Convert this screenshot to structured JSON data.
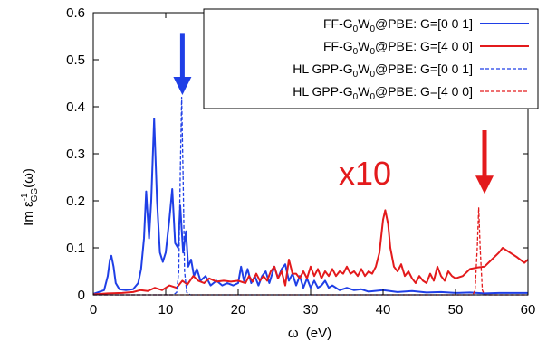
{
  "chart_data": {
    "type": "line",
    "xlabel_main": "ω",
    "xlabel_unit": "(eV)",
    "ylabel": {
      "base": "Im ε",
      "sup": "-1",
      "sub": "GG",
      "tail": "(ω)"
    },
    "xlim": [
      0,
      60
    ],
    "ylim": [
      0,
      0.6
    ],
    "xticks": [
      0,
      10,
      20,
      30,
      40,
      50,
      60
    ],
    "yticks": [
      0,
      0.1,
      0.2,
      0.3,
      0.4,
      0.5,
      0.6
    ],
    "xtick_labels": [
      "0",
      "10",
      "20",
      "30",
      "40",
      "50",
      "60"
    ],
    "ytick_labels": [
      "0",
      "0.1",
      "0.2",
      "0.3",
      "0.4",
      "0.5",
      "0.6"
    ],
    "grid": false,
    "legend_position": "top-right",
    "annotation": {
      "text": "x10",
      "x": 37.5,
      "y": 0.235
    },
    "arrows": [
      {
        "x": 12.3,
        "y_from": 0.555,
        "y_to": 0.425,
        "color": "#1f3fe6"
      },
      {
        "x": 54.0,
        "y_from": 0.35,
        "y_to": 0.215,
        "color": "#e31a1c"
      }
    ],
    "series": [
      {
        "name": "FF-G0W0@PBE: G=[0 0 1]",
        "legend": {
          "prefix": "FF-G",
          "sub1": "0",
          "mid": "W",
          "sub2": "0",
          "suffix": "@PBE: G=[0 0 1]"
        },
        "color": "#1f3fe6",
        "dash": "solid",
        "points": [
          [
            0,
            0.002
          ],
          [
            1.5,
            0.01
          ],
          [
            2.0,
            0.04
          ],
          [
            2.3,
            0.075
          ],
          [
            2.5,
            0.083
          ],
          [
            2.8,
            0.06
          ],
          [
            3.1,
            0.025
          ],
          [
            3.6,
            0.012
          ],
          [
            4.5,
            0.01
          ],
          [
            5.5,
            0.012
          ],
          [
            6.2,
            0.025
          ],
          [
            6.6,
            0.055
          ],
          [
            7.0,
            0.12
          ],
          [
            7.3,
            0.22
          ],
          [
            7.7,
            0.12
          ],
          [
            8.0,
            0.2
          ],
          [
            8.4,
            0.375
          ],
          [
            8.8,
            0.2
          ],
          [
            9.2,
            0.09
          ],
          [
            9.6,
            0.07
          ],
          [
            10.0,
            0.09
          ],
          [
            10.5,
            0.16
          ],
          [
            10.9,
            0.225
          ],
          [
            11.3,
            0.11
          ],
          [
            11.7,
            0.1
          ],
          [
            12.0,
            0.19
          ],
          [
            12.4,
            0.09
          ],
          [
            12.8,
            0.135
          ],
          [
            13.1,
            0.06
          ],
          [
            13.5,
            0.075
          ],
          [
            13.9,
            0.04
          ],
          [
            14.3,
            0.055
          ],
          [
            14.8,
            0.03
          ],
          [
            15.5,
            0.04
          ],
          [
            16.2,
            0.02
          ],
          [
            17.0,
            0.03
          ],
          [
            17.8,
            0.02
          ],
          [
            18.5,
            0.025
          ],
          [
            19.3,
            0.02
          ],
          [
            20.0,
            0.025
          ],
          [
            20.4,
            0.06
          ],
          [
            20.8,
            0.03
          ],
          [
            21.3,
            0.055
          ],
          [
            21.8,
            0.025
          ],
          [
            22.3,
            0.04
          ],
          [
            22.8,
            0.02
          ],
          [
            23.3,
            0.04
          ],
          [
            23.8,
            0.05
          ],
          [
            24.3,
            0.025
          ],
          [
            25.0,
            0.06
          ],
          [
            25.5,
            0.035
          ],
          [
            26.0,
            0.055
          ],
          [
            26.5,
            0.065
          ],
          [
            27.0,
            0.03
          ],
          [
            27.5,
            0.045
          ],
          [
            28.0,
            0.02
          ],
          [
            28.5,
            0.04
          ],
          [
            29.0,
            0.015
          ],
          [
            29.5,
            0.035
          ],
          [
            30.0,
            0.015
          ],
          [
            30.5,
            0.03
          ],
          [
            31.0,
            0.015
          ],
          [
            31.5,
            0.02
          ],
          [
            32.0,
            0.03
          ],
          [
            32.5,
            0.015
          ],
          [
            33.0,
            0.02
          ],
          [
            34.0,
            0.01
          ],
          [
            35.0,
            0.015
          ],
          [
            36.0,
            0.01
          ],
          [
            37.0,
            0.012
          ],
          [
            38.0,
            0.007
          ],
          [
            40.0,
            0.01
          ],
          [
            42.0,
            0.006
          ],
          [
            44.0,
            0.008
          ],
          [
            46.0,
            0.005
          ],
          [
            48.0,
            0.006
          ],
          [
            50.0,
            0.004
          ],
          [
            52.0,
            0.005
          ],
          [
            54.0,
            0.003
          ],
          [
            56.0,
            0.004
          ],
          [
            58.0,
            0.004
          ],
          [
            60.0,
            0.004
          ]
        ]
      },
      {
        "name": "FF-G0W0@PBE: G=[4 0 0]",
        "legend": {
          "prefix": "FF-G",
          "sub1": "0",
          "mid": "W",
          "sub2": "0",
          "suffix": "@PBE: G=[4 0 0]"
        },
        "color": "#e31a1c",
        "dash": "solid",
        "points": [
          [
            0,
            0.001
          ],
          [
            2,
            0.003
          ],
          [
            4,
            0.004
          ],
          [
            5.5,
            0.006
          ],
          [
            6.5,
            0.01
          ],
          [
            7.5,
            0.008
          ],
          [
            8.5,
            0.015
          ],
          [
            9.5,
            0.01
          ],
          [
            10.5,
            0.02
          ],
          [
            11.5,
            0.015
          ],
          [
            12.3,
            0.03
          ],
          [
            13.0,
            0.022
          ],
          [
            13.8,
            0.04
          ],
          [
            14.5,
            0.03
          ],
          [
            15.3,
            0.025
          ],
          [
            16.0,
            0.035
          ],
          [
            17.0,
            0.028
          ],
          [
            18.0,
            0.03
          ],
          [
            19.0,
            0.028
          ],
          [
            20.0,
            0.03
          ],
          [
            21.0,
            0.025
          ],
          [
            21.5,
            0.04
          ],
          [
            22.0,
            0.028
          ],
          [
            22.5,
            0.045
          ],
          [
            23.0,
            0.03
          ],
          [
            23.5,
            0.04
          ],
          [
            24.0,
            0.03
          ],
          [
            24.5,
            0.05
          ],
          [
            25.0,
            0.06
          ],
          [
            25.5,
            0.035
          ],
          [
            26.0,
            0.05
          ],
          [
            26.5,
            0.02
          ],
          [
            27.0,
            0.075
          ],
          [
            27.5,
            0.045
          ],
          [
            28.0,
            0.045
          ],
          [
            28.5,
            0.035
          ],
          [
            29.0,
            0.05
          ],
          [
            29.5,
            0.035
          ],
          [
            30.0,
            0.06
          ],
          [
            30.5,
            0.04
          ],
          [
            31.0,
            0.055
          ],
          [
            31.5,
            0.035
          ],
          [
            32.0,
            0.05
          ],
          [
            32.5,
            0.04
          ],
          [
            33.0,
            0.055
          ],
          [
            33.5,
            0.04
          ],
          [
            34.0,
            0.05
          ],
          [
            34.5,
            0.045
          ],
          [
            35.0,
            0.06
          ],
          [
            35.5,
            0.045
          ],
          [
            36.0,
            0.05
          ],
          [
            36.5,
            0.04
          ],
          [
            37.0,
            0.055
          ],
          [
            37.5,
            0.04
          ],
          [
            38.0,
            0.05
          ],
          [
            38.5,
            0.045
          ],
          [
            39.0,
            0.06
          ],
          [
            39.5,
            0.09
          ],
          [
            40.0,
            0.16
          ],
          [
            40.3,
            0.18
          ],
          [
            40.7,
            0.15
          ],
          [
            41.0,
            0.1
          ],
          [
            41.5,
            0.06
          ],
          [
            42.0,
            0.05
          ],
          [
            42.5,
            0.065
          ],
          [
            43.0,
            0.04
          ],
          [
            43.5,
            0.05
          ],
          [
            44.0,
            0.035
          ],
          [
            44.5,
            0.025
          ],
          [
            45.0,
            0.04
          ],
          [
            45.5,
            0.03
          ],
          [
            46.0,
            0.025
          ],
          [
            46.5,
            0.045
          ],
          [
            47.0,
            0.03
          ],
          [
            47.5,
            0.06
          ],
          [
            48.0,
            0.04
          ],
          [
            48.5,
            0.03
          ],
          [
            49.0,
            0.05
          ],
          [
            49.5,
            0.04
          ],
          [
            50.0,
            0.035
          ],
          [
            51.0,
            0.04
          ],
          [
            52.0,
            0.055
          ],
          [
            53.0,
            0.058
          ],
          [
            54.0,
            0.06
          ],
          [
            55.0,
            0.075
          ],
          [
            56.0,
            0.09
          ],
          [
            56.5,
            0.1
          ],
          [
            57.5,
            0.09
          ],
          [
            58.5,
            0.08
          ],
          [
            59.5,
            0.068
          ],
          [
            60.0,
            0.075
          ]
        ]
      },
      {
        "name": "HL GPP-G0W0@PBE: G=[0 0 1]",
        "legend": {
          "prefix": "HL GPP-G",
          "sub1": "0",
          "mid": "W",
          "sub2": "0",
          "suffix": "@PBE: G=[0 0 1]"
        },
        "color": "#1f3fe6",
        "dash": "dashed",
        "points": [
          [
            0,
            0
          ],
          [
            11.0,
            0
          ],
          [
            11.5,
            0.005
          ],
          [
            11.8,
            0.05
          ],
          [
            12.0,
            0.25
          ],
          [
            12.2,
            0.42
          ],
          [
            12.4,
            0.25
          ],
          [
            12.6,
            0.05
          ],
          [
            12.9,
            0.005
          ],
          [
            13.4,
            0
          ],
          [
            60,
            0
          ]
        ]
      },
      {
        "name": "HL GPP-G0W0@PBE: G=[4 0 0]",
        "legend": {
          "prefix": "HL GPP-G",
          "sub1": "0",
          "mid": "W",
          "sub2": "0",
          "suffix": "@PBE: G=[4 0 0]"
        },
        "color": "#e31a1c",
        "dash": "dashed",
        "points": [
          [
            0,
            0
          ],
          [
            52.4,
            0
          ],
          [
            52.7,
            0.01
          ],
          [
            53.0,
            0.1
          ],
          [
            53.2,
            0.185
          ],
          [
            53.4,
            0.1
          ],
          [
            53.7,
            0.01
          ],
          [
            54.0,
            0
          ],
          [
            60,
            0
          ]
        ]
      }
    ]
  }
}
